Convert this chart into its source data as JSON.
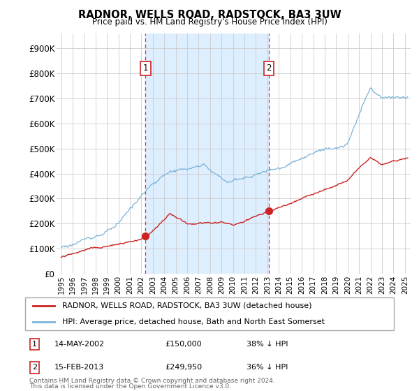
{
  "title": "RADNOR, WELLS ROAD, RADSTOCK, BA3 3UW",
  "subtitle": "Price paid vs. HM Land Registry's House Price Index (HPI)",
  "ylabel_ticks": [
    "£0",
    "£100K",
    "£200K",
    "£300K",
    "£400K",
    "£500K",
    "£600K",
    "£700K",
    "£800K",
    "£900K"
  ],
  "ytick_values": [
    0,
    100000,
    200000,
    300000,
    400000,
    500000,
    600000,
    700000,
    800000,
    900000
  ],
  "ylim": [
    0,
    950000
  ],
  "xlim_start": 1994.6,
  "xlim_end": 2025.5,
  "legend_line1": "RADNOR, WELLS ROAD, RADSTOCK, BA3 3UW (detached house)",
  "legend_line2": "HPI: Average price, detached house, Bath and North East Somerset",
  "sale1_label": "1",
  "sale1_date": "14-MAY-2002",
  "sale1_price": "£150,000",
  "sale1_hpi": "38% ↓ HPI",
  "sale1_x": 2002.37,
  "sale1_y": 150000,
  "sale2_label": "2",
  "sale2_date": "15-FEB-2013",
  "sale2_price": "£249,950",
  "sale2_hpi": "36% ↓ HPI",
  "sale2_x": 2013.12,
  "sale2_y": 249950,
  "vline1_x": 2002.37,
  "vline2_x": 2013.12,
  "footer1": "Contains HM Land Registry data © Crown copyright and database right 2024.",
  "footer2": "This data is licensed under the Open Government Licence v3.0.",
  "hpi_color": "#7ab3d8",
  "sale_color": "#cc2222",
  "fill_color": "#ddeeff",
  "grid_color": "#cccccc",
  "background_color": "#ffffff"
}
